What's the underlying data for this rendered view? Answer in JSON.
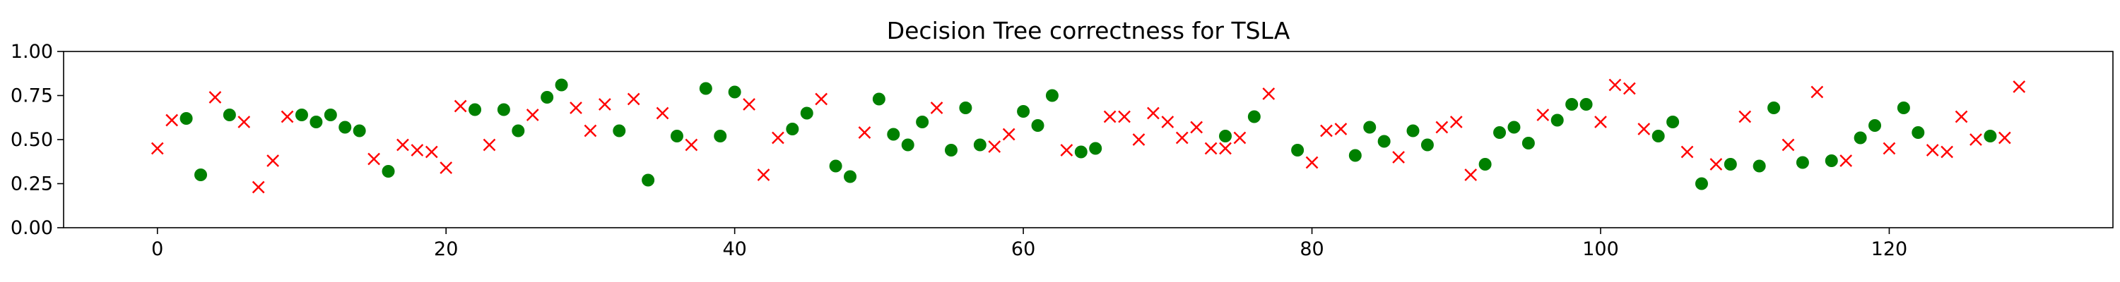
{
  "colors": {
    "correct": "#008000",
    "incorrect": "#ff0000",
    "axis": "#000000",
    "background": "#ffffff"
  },
  "chart_data": {
    "type": "scatter",
    "title": "Decision Tree correctness for TSLA",
    "xlabel": "",
    "ylabel": "",
    "xlim": [
      -6.5,
      135.5
    ],
    "ylim": [
      0.0,
      1.0
    ],
    "xticks": [
      0,
      20,
      40,
      60,
      80,
      100,
      120
    ],
    "yticks": [
      "0.00",
      "0.25",
      "0.50",
      "0.75",
      "1.00"
    ],
    "grid": false,
    "legend": "none",
    "series": [
      {
        "marker": "circle",
        "color": "#008000",
        "points": [
          [
            2,
            0.62
          ],
          [
            3,
            0.3
          ],
          [
            5,
            0.64
          ],
          [
            10,
            0.64
          ],
          [
            11,
            0.6
          ],
          [
            12,
            0.64
          ],
          [
            13,
            0.57
          ],
          [
            14,
            0.55
          ],
          [
            16,
            0.32
          ],
          [
            22,
            0.67
          ],
          [
            24,
            0.67
          ],
          [
            25,
            0.55
          ],
          [
            27,
            0.74
          ],
          [
            28,
            0.81
          ],
          [
            32,
            0.55
          ],
          [
            34,
            0.27
          ],
          [
            36,
            0.52
          ],
          [
            38,
            0.79
          ],
          [
            39,
            0.52
          ],
          [
            40,
            0.77
          ],
          [
            44,
            0.56
          ],
          [
            45,
            0.65
          ],
          [
            47,
            0.35
          ],
          [
            48,
            0.29
          ],
          [
            50,
            0.73
          ],
          [
            51,
            0.53
          ],
          [
            52,
            0.47
          ],
          [
            53,
            0.6
          ],
          [
            55,
            0.44
          ],
          [
            56,
            0.68
          ],
          [
            57,
            0.47
          ],
          [
            60,
            0.66
          ],
          [
            61,
            0.58
          ],
          [
            62,
            0.75
          ],
          [
            64,
            0.43
          ],
          [
            65,
            0.45
          ],
          [
            74,
            0.52
          ],
          [
            76,
            0.63
          ],
          [
            79,
            0.44
          ],
          [
            83,
            0.41
          ],
          [
            84,
            0.57
          ],
          [
            85,
            0.49
          ],
          [
            87,
            0.55
          ],
          [
            88,
            0.47
          ],
          [
            92,
            0.36
          ],
          [
            93,
            0.54
          ],
          [
            94,
            0.57
          ],
          [
            95,
            0.48
          ],
          [
            97,
            0.61
          ],
          [
            98,
            0.7
          ],
          [
            99,
            0.7
          ],
          [
            104,
            0.52
          ],
          [
            105,
            0.6
          ],
          [
            107,
            0.25
          ],
          [
            109,
            0.36
          ],
          [
            111,
            0.35
          ],
          [
            112,
            0.68
          ],
          [
            114,
            0.37
          ],
          [
            116,
            0.38
          ],
          [
            118,
            0.51
          ],
          [
            119,
            0.58
          ],
          [
            121,
            0.68
          ],
          [
            122,
            0.54
          ],
          [
            127,
            0.52
          ]
        ]
      },
      {
        "marker": "x",
        "color": "#ff0000",
        "points": [
          [
            0,
            0.45
          ],
          [
            1,
            0.61
          ],
          [
            4,
            0.74
          ],
          [
            6,
            0.6
          ],
          [
            7,
            0.23
          ],
          [
            8,
            0.38
          ],
          [
            9,
            0.63
          ],
          [
            15,
            0.39
          ],
          [
            17,
            0.47
          ],
          [
            18,
            0.44
          ],
          [
            19,
            0.43
          ],
          [
            20,
            0.34
          ],
          [
            21,
            0.69
          ],
          [
            23,
            0.47
          ],
          [
            26,
            0.64
          ],
          [
            29,
            0.68
          ],
          [
            30,
            0.55
          ],
          [
            31,
            0.7
          ],
          [
            33,
            0.73
          ],
          [
            35,
            0.65
          ],
          [
            37,
            0.47
          ],
          [
            41,
            0.7
          ],
          [
            42,
            0.3
          ],
          [
            43,
            0.51
          ],
          [
            46,
            0.73
          ],
          [
            49,
            0.54
          ],
          [
            54,
            0.68
          ],
          [
            58,
            0.46
          ],
          [
            59,
            0.53
          ],
          [
            63,
            0.44
          ],
          [
            66,
            0.63
          ],
          [
            67,
            0.63
          ],
          [
            68,
            0.5
          ],
          [
            69,
            0.65
          ],
          [
            70,
            0.6
          ],
          [
            71,
            0.51
          ],
          [
            72,
            0.57
          ],
          [
            73,
            0.45
          ],
          [
            74,
            0.45
          ],
          [
            75,
            0.51
          ],
          [
            77,
            0.76
          ],
          [
            80,
            0.37
          ],
          [
            81,
            0.55
          ],
          [
            82,
            0.56
          ],
          [
            86,
            0.4
          ],
          [
            89,
            0.57
          ],
          [
            90,
            0.6
          ],
          [
            91,
            0.3
          ],
          [
            96,
            0.64
          ],
          [
            100,
            0.6
          ],
          [
            101,
            0.81
          ],
          [
            102,
            0.79
          ],
          [
            103,
            0.56
          ],
          [
            106,
            0.43
          ],
          [
            108,
            0.36
          ],
          [
            110,
            0.63
          ],
          [
            113,
            0.47
          ],
          [
            115,
            0.77
          ],
          [
            117,
            0.38
          ],
          [
            120,
            0.45
          ],
          [
            123,
            0.44
          ],
          [
            124,
            0.43
          ],
          [
            125,
            0.63
          ],
          [
            126,
            0.5
          ],
          [
            128,
            0.51
          ],
          [
            129,
            0.8
          ]
        ]
      }
    ]
  }
}
